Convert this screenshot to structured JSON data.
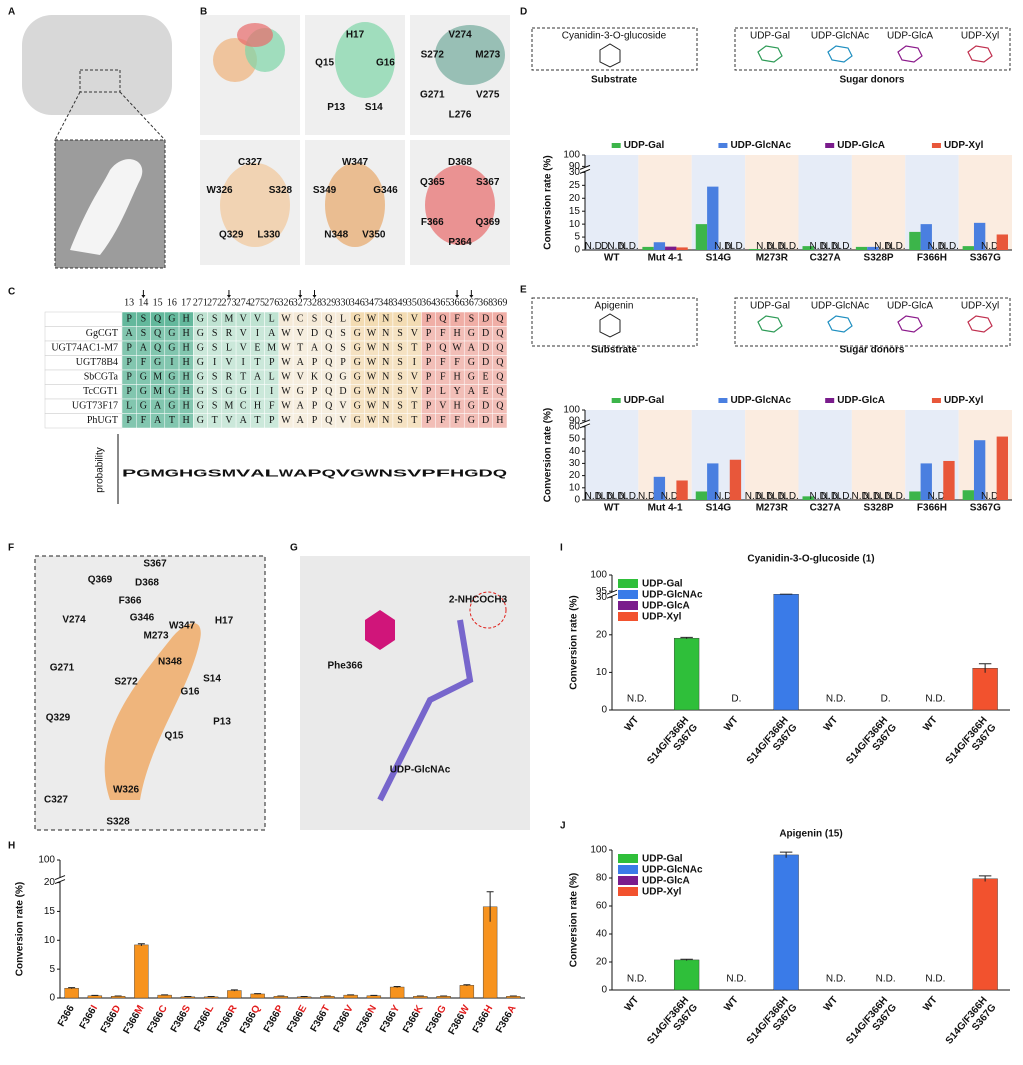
{
  "panel_labels": [
    "A",
    "B",
    "C",
    "D",
    "E",
    "F",
    "G",
    "H",
    "I",
    "J"
  ],
  "panel_b": {
    "cells": [
      [],
      [
        "H17",
        "G16",
        "S14",
        "P13",
        "Q15"
      ],
      [
        "V274",
        "M273",
        "V275",
        "L276",
        "G271",
        "S272"
      ],
      [
        "C327",
        "S328",
        "L330",
        "Q329",
        "W326"
      ],
      [
        "W347",
        "G346",
        "V350",
        "N348",
        "S349"
      ],
      [
        "D368",
        "S367",
        "Q369",
        "P364",
        "F366",
        "Q365"
      ]
    ]
  },
  "panel_c": {
    "positions": [
      13,
      14,
      15,
      16,
      17,
      271,
      272,
      273,
      274,
      275,
      276,
      326,
      327,
      328,
      329,
      330,
      346,
      347,
      348,
      349,
      350,
      364,
      365,
      366,
      367,
      368,
      369
    ],
    "marked": [
      14,
      273,
      327,
      328,
      366,
      367
    ],
    "rows": [
      {
        "name": null,
        "residues": [
          "P",
          "S",
          "Q",
          "G",
          "H",
          "G",
          "S",
          "M",
          "V",
          "V",
          "L",
          "W",
          "C",
          "S",
          "Q",
          "L",
          "G",
          "W",
          "N",
          "S",
          "V",
          "P",
          "Q",
          "F",
          "S",
          "D",
          "Q"
        ]
      },
      {
        "name": "GgCGT",
        "residues": [
          "A",
          "S",
          "Q",
          "G",
          "H",
          "G",
          "S",
          "R",
          "V",
          "I",
          "A",
          "W",
          "V",
          "D",
          "Q",
          "S",
          "G",
          "W",
          "N",
          "S",
          "V",
          "P",
          "F",
          "H",
          "G",
          "D",
          "Q"
        ]
      },
      {
        "name": "UGT74AC1-M7",
        "residues": [
          "P",
          "A",
          "Q",
          "G",
          "H",
          "G",
          "S",
          "L",
          "V",
          "E",
          "M",
          "W",
          "T",
          "A",
          "Q",
          "S",
          "G",
          "W",
          "N",
          "S",
          "T",
          "P",
          "Q",
          "W",
          "A",
          "D",
          "Q"
        ]
      },
      {
        "name": "UGT78B4",
        "residues": [
          "P",
          "F",
          "G",
          "I",
          "H",
          "G",
          "I",
          "V",
          "I",
          "T",
          "P",
          "W",
          "A",
          "P",
          "Q",
          "P",
          "G",
          "W",
          "N",
          "S",
          "I",
          "P",
          "F",
          "F",
          "G",
          "D",
          "Q"
        ]
      },
      {
        "name": "SbCGTa",
        "residues": [
          "P",
          "G",
          "M",
          "G",
          "H",
          "G",
          "S",
          "R",
          "T",
          "A",
          "L",
          "W",
          "V",
          "K",
          "Q",
          "G",
          "G",
          "W",
          "N",
          "S",
          "V",
          "P",
          "F",
          "H",
          "G",
          "E",
          "Q"
        ]
      },
      {
        "name": "TcCGT1",
        "residues": [
          "P",
          "G",
          "M",
          "G",
          "H",
          "G",
          "S",
          "G",
          "G",
          "I",
          "I",
          "W",
          "G",
          "P",
          "Q",
          "D",
          "G",
          "W",
          "N",
          "S",
          "V",
          "P",
          "L",
          "Y",
          "A",
          "E",
          "Q"
        ]
      },
      {
        "name": "UGT73F17",
        "residues": [
          "L",
          "G",
          "A",
          "G",
          "H",
          "G",
          "S",
          "M",
          "C",
          "H",
          "F",
          "W",
          "A",
          "P",
          "Q",
          "V",
          "G",
          "W",
          "N",
          "S",
          "T",
          "P",
          "V",
          "H",
          "G",
          "D",
          "Q"
        ]
      },
      {
        "name": "PhUGT",
        "residues": [
          "P",
          "F",
          "A",
          "T",
          "H",
          "G",
          "T",
          "V",
          "A",
          "T",
          "P",
          "W",
          "A",
          "P",
          "Q",
          "V",
          "G",
          "W",
          "N",
          "S",
          "T",
          "P",
          "F",
          "F",
          "G",
          "D",
          "H"
        ]
      }
    ],
    "logo": [
      "P",
      "G",
      "M",
      "G",
      "H",
      "G",
      "S",
      "M",
      "V",
      "A",
      "L",
      "W",
      "A",
      "P",
      "Q",
      "V",
      "G",
      "W",
      "N",
      "S",
      "V",
      "P",
      "F",
      "H",
      "G",
      "D",
      "Q"
    ],
    "y_label": "probability"
  },
  "panel_d": {
    "substrate": "Cyanidin-3-O-glucoside",
    "substrate_caption": "Substrate",
    "donors_caption": "Sugar donors",
    "donors": [
      {
        "name": "UDP-Gal",
        "color": "#2e9b57"
      },
      {
        "name": "UDP-GlcNAc",
        "color": "#1f8fc0"
      },
      {
        "name": "UDP-GlcA",
        "color": "#8b1a8b"
      },
      {
        "name": "UDP-Xyl",
        "color": "#c0304f"
      }
    ]
  },
  "panel_e": {
    "substrate": "Apigenin",
    "substrate_caption": "Substrate",
    "donors_caption": "Sugar donors",
    "donors": [
      {
        "name": "UDP-Gal",
        "color": "#2e9b57"
      },
      {
        "name": "UDP-GlcNAc",
        "color": "#1f8fc0"
      },
      {
        "name": "UDP-GlcA",
        "color": "#8b1a8b"
      },
      {
        "name": "UDP-Xyl",
        "color": "#c0304f"
      }
    ]
  },
  "panel_f": {
    "labels": [
      "S367",
      "Q369",
      "D368",
      "F366",
      "V274",
      "G346",
      "M273",
      "W347",
      "H17",
      "G271",
      "N348",
      "S14",
      "S272",
      "G16",
      "Q329",
      "P13",
      "Q15",
      "W326",
      "C327",
      "S328"
    ]
  },
  "panel_g": {
    "labels": [
      "Phe366",
      "2-NHCOCH3",
      "UDP-GlcNAc"
    ]
  },
  "chart_data": [
    {
      "type": "bar",
      "y_label": "Conversion rate (%)",
      "categories": [
        "WT",
        "Mut 4-1",
        "S14G",
        "M273R",
        "C327A",
        "S328P",
        "F366H",
        "S367G"
      ],
      "series": [
        {
          "name": "UDP-Gal",
          "color": "#3cb54a",
          "values": [
            null,
            1.2,
            10,
            0.4,
            1.5,
            1.2,
            7,
            1.5
          ],
          "value_labels": [
            "N.D.",
            null,
            null,
            null,
            null,
            null,
            null,
            null
          ]
        },
        {
          "name": "UDP-GlcNAc",
          "color": "#4a7fe0",
          "values": [
            null,
            3,
            24.5,
            null,
            null,
            1.2,
            10,
            10.5
          ],
          "value_labels": [
            "D.",
            null,
            null,
            "N.D.",
            "N.D.",
            null,
            null,
            null
          ]
        },
        {
          "name": "UDP-GlcA",
          "color": "#7a1c8c",
          "values": [
            null,
            1.3,
            null,
            null,
            null,
            null,
            null,
            null
          ],
          "value_labels": [
            "N.D.",
            null,
            "N.D.",
            "N.D.",
            "N.D.",
            "N.D.",
            "N.D.",
            "N.D."
          ]
        },
        {
          "name": "UDP-Xyl",
          "color": "#e8573a",
          "values": [
            null,
            1,
            null,
            null,
            null,
            null,
            null,
            6
          ],
          "value_labels": [
            "N.D.",
            null,
            "N.D.",
            "N.D.",
            "N.D.",
            "N.D.",
            "N.D.",
            null
          ]
        }
      ],
      "ylim": [
        0,
        100
      ],
      "yticks": [
        0,
        5,
        10,
        15,
        20,
        25,
        30,
        90,
        100
      ],
      "ybreak": [
        30,
        90
      ],
      "legend": "top",
      "band_colors": [
        "#e6ecf7",
        "#fbece0"
      ]
    },
    {
      "type": "bar",
      "y_label": "Conversion rate (%)",
      "categories": [
        "WT",
        "Mut 4-1",
        "S14G",
        "M273R",
        "C327A",
        "S328P",
        "F366H",
        "S367G"
      ],
      "series": [
        {
          "name": "UDP-Gal",
          "color": "#3cb54a",
          "values": [
            null,
            null,
            7,
            null,
            3,
            null,
            7,
            8
          ],
          "value_labels": [
            "N.D.",
            "N.D.",
            null,
            "N.D.",
            null,
            "N.D.",
            null,
            null
          ]
        },
        {
          "name": "UDP-GlcNAc",
          "color": "#4a7fe0",
          "values": [
            null,
            19,
            30,
            null,
            null,
            null,
            30,
            49
          ],
          "value_labels": [
            "N.D.",
            null,
            null,
            "N.D.",
            "N.D.",
            "N.D.",
            null,
            null
          ]
        },
        {
          "name": "UDP-GlcA",
          "color": "#7a1c8c",
          "values": [
            null,
            null,
            null,
            null,
            null,
            null,
            null,
            null
          ],
          "value_labels": [
            "N.D.",
            "N.D.",
            "N.D.",
            "N.D.",
            "N.D.",
            "N.D.",
            "N.D.",
            "N.D."
          ]
        },
        {
          "name": "UDP-Xyl",
          "color": "#e8573a",
          "values": [
            null,
            16,
            33,
            null,
            null,
            null,
            32,
            52
          ],
          "value_labels": [
            "N.D.",
            null,
            null,
            "N.D.",
            "N.D.",
            "N.D.",
            null,
            null
          ]
        }
      ],
      "ylim": [
        0,
        100
      ],
      "yticks": [
        0,
        10,
        20,
        30,
        40,
        50,
        60,
        90,
        100
      ],
      "ybreak": [
        60,
        90
      ],
      "legend": "top",
      "band_colors": [
        "#e6ecf7",
        "#fbece0"
      ]
    },
    {
      "type": "bar",
      "y_label": "Conversion rate (%)",
      "categories": [
        "F366",
        "F366I",
        "F366D",
        "F366M",
        "F366C",
        "F366S",
        "F366L",
        "F366R",
        "F366Q",
        "F366P",
        "F366E",
        "F366T",
        "F366V",
        "F366N",
        "F366Y",
        "F366K",
        "F366G",
        "F366W",
        "F366H",
        "F366A"
      ],
      "values": [
        1.7,
        0.4,
        0.3,
        9.2,
        0.5,
        0.2,
        0.2,
        1.3,
        0.7,
        0.3,
        0.2,
        0.3,
        0.5,
        0.4,
        1.9,
        0.3,
        0.3,
        2.2,
        15.8,
        0.3
      ],
      "errors": [
        0.1,
        0.05,
        0.05,
        0.2,
        0.05,
        0.05,
        0.05,
        0.1,
        0.05,
        0.05,
        0.05,
        0.05,
        0.05,
        0.05,
        0.1,
        0.05,
        0.05,
        0.1,
        2.6,
        0.05
      ],
      "color": "#f7931e",
      "highlight_color": "#e21d1d",
      "ylim": [
        0,
        100
      ],
      "yticks": [
        0,
        5,
        10,
        15,
        20,
        100
      ],
      "ybreak": [
        20,
        95
      ]
    },
    {
      "type": "bar",
      "title": "Cyanidin-3-O-glucoside (1)",
      "y_label": "Conversion rate (%)",
      "categories": [
        "WT",
        "S14G/F366H\nS367G",
        "WT",
        "S14G/F366H\nS367G",
        "WT",
        "S14G/F366H\nS367G",
        "WT",
        "S14G/F366H\nS367G"
      ],
      "values": [
        null,
        19.1,
        null,
        30.5,
        null,
        null,
        null,
        11.1
      ],
      "errors": [
        null,
        0.2,
        null,
        0.3,
        null,
        null,
        null,
        1.2
      ],
      "value_labels": [
        "N.D.",
        null,
        "D.",
        null,
        "N.D.",
        "D.",
        "N.D.",
        null
      ],
      "colors": [
        "#2fbf3a",
        "#2fbf3a",
        "#3a7be8",
        "#3a7be8",
        "#7a1c8c",
        "#7a1c8c",
        "#f2522e",
        "#f2522e"
      ],
      "legend_entries": [
        {
          "name": "UDP-Gal",
          "color": "#2fbf3a"
        },
        {
          "name": "UDP-GlcNAc",
          "color": "#3a7be8"
        },
        {
          "name": "UDP-GlcA",
          "color": "#7a1c8c"
        },
        {
          "name": "UDP-Xyl",
          "color": "#f2522e"
        }
      ],
      "legend": "upper left",
      "ylim": [
        0,
        100
      ],
      "yticks": [
        0,
        10,
        20,
        30,
        95,
        100
      ],
      "ybreak": [
        30,
        95
      ]
    },
    {
      "type": "bar",
      "title": "Apigenin (15)",
      "y_label": "Conversion rate (%)",
      "categories": [
        "WT",
        "S14G/F366H\nS367G",
        "WT",
        "S14G/F366H\nS367G",
        "WT",
        "S14G/F366H\nS367G",
        "WT",
        "S14G/F366H\nS367G"
      ],
      "values": [
        null,
        21.5,
        null,
        96.5,
        null,
        null,
        null,
        79.5
      ],
      "errors": [
        null,
        0.5,
        null,
        2,
        null,
        null,
        null,
        2
      ],
      "value_labels": [
        "N.D.",
        null,
        "N.D.",
        null,
        "N.D.",
        "N.D.",
        "N.D.",
        null
      ],
      "colors": [
        "#2fbf3a",
        "#2fbf3a",
        "#3a7be8",
        "#3a7be8",
        "#7a1c8c",
        "#7a1c8c",
        "#f2522e",
        "#f2522e"
      ],
      "legend_entries": [
        {
          "name": "UDP-Gal",
          "color": "#2fbf3a"
        },
        {
          "name": "UDP-GlcNAc",
          "color": "#3a7be8"
        },
        {
          "name": "UDP-GlcA",
          "color": "#7a1c8c"
        },
        {
          "name": "UDP-Xyl",
          "color": "#f2522e"
        }
      ],
      "legend": "upper left",
      "ylim": [
        0,
        100
      ],
      "yticks": [
        0,
        20,
        40,
        60,
        80,
        100
      ]
    }
  ]
}
